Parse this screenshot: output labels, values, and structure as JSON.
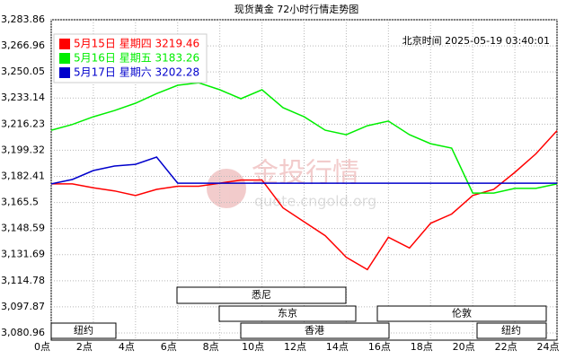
{
  "chart_data": {
    "type": "line",
    "title": "现货黄金 72小时行情走势图",
    "timestamp": "北京时间 2025-05-19 03:40:01",
    "watermark": "金投行情",
    "watermark_url": "quote.cngold.org",
    "sessions": [
      "悉尼",
      "东京",
      "伦敦",
      "香港",
      "纽约",
      "纽约"
    ],
    "x": [
      0,
      1,
      2,
      3,
      4,
      5,
      6,
      7,
      8,
      9,
      10,
      11,
      12,
      13,
      14,
      15,
      16,
      17,
      18,
      19,
      20,
      21,
      22,
      23,
      24
    ],
    "xlim": [
      0,
      24
    ],
    "xticks": [
      {
        "value": 0,
        "label": "0点"
      },
      {
        "value": 2,
        "label": "2点"
      },
      {
        "value": 4,
        "label": "4点"
      },
      {
        "value": 6,
        "label": "6点"
      },
      {
        "value": 8,
        "label": "8点"
      },
      {
        "value": 10,
        "label": "10点"
      },
      {
        "value": 12,
        "label": "12点"
      },
      {
        "value": 14,
        "label": "14点"
      },
      {
        "value": 16,
        "label": "16点"
      },
      {
        "value": 18,
        "label": "18点"
      },
      {
        "value": 20,
        "label": "20点"
      },
      {
        "value": 22,
        "label": "22点"
      },
      {
        "value": 24,
        "label": "24点"
      }
    ],
    "ylim": [
      3080.96,
      3283.86
    ],
    "yticks": [
      {
        "value": 3283.86,
        "label": "3,283.86"
      },
      {
        "value": 3266.96,
        "label": "3,266.96"
      },
      {
        "value": 3250.05,
        "label": "3,250.05"
      },
      {
        "value": 3233.14,
        "label": "3,233.14"
      },
      {
        "value": 3216.23,
        "label": "3,216.23"
      },
      {
        "value": 3199.32,
        "label": "3,199.32"
      },
      {
        "value": 3182.41,
        "label": "3,182.41"
      },
      {
        "value": 3165.5,
        "label": "3,165.5"
      },
      {
        "value": 3148.59,
        "label": "3,148.59"
      },
      {
        "value": 3131.69,
        "label": "3,131.69"
      },
      {
        "value": 3114.78,
        "label": "3,114.78"
      },
      {
        "value": 3097.87,
        "label": "3,097.87"
      },
      {
        "value": 3080.96,
        "label": "3,080.96"
      }
    ],
    "grid": true,
    "series": [
      {
        "name": "5月15日 星期四 3219.46",
        "color": "#ff0000",
        "values": [
          3177.5,
          3177.5,
          3175,
          3173,
          3170,
          3174,
          3176,
          3176,
          3178,
          3180,
          3180,
          3162,
          3153,
          3144,
          3130,
          3122,
          3143,
          3136,
          3152,
          3158,
          3170,
          3174,
          3185,
          3197,
          3212
        ]
      },
      {
        "name": "5月16日 星期五 3183.26",
        "color": "#00ee00",
        "values": [
          3212.3,
          3216,
          3221,
          3225,
          3229.8,
          3236,
          3241.4,
          3243,
          3238.5,
          3232.7,
          3238.5,
          3226.9,
          3221,
          3212.3,
          3209.4,
          3215.2,
          3218.2,
          3209.4,
          3203.6,
          3200.7,
          3171.6,
          3171.6,
          3174.6,
          3174.6,
          3177.5
        ]
      },
      {
        "name": "5月17日 星期六 3202.28",
        "color": "#0000cc",
        "values": [
          3177.5,
          3180.4,
          3186.2,
          3189.1,
          3190.2,
          3194.9,
          3178,
          3178,
          3178,
          3178,
          3178,
          3178,
          3178,
          3178,
          3178,
          3178,
          3178,
          3178,
          3178,
          3178,
          3178,
          3178,
          3178,
          3178,
          3178
        ]
      }
    ]
  }
}
